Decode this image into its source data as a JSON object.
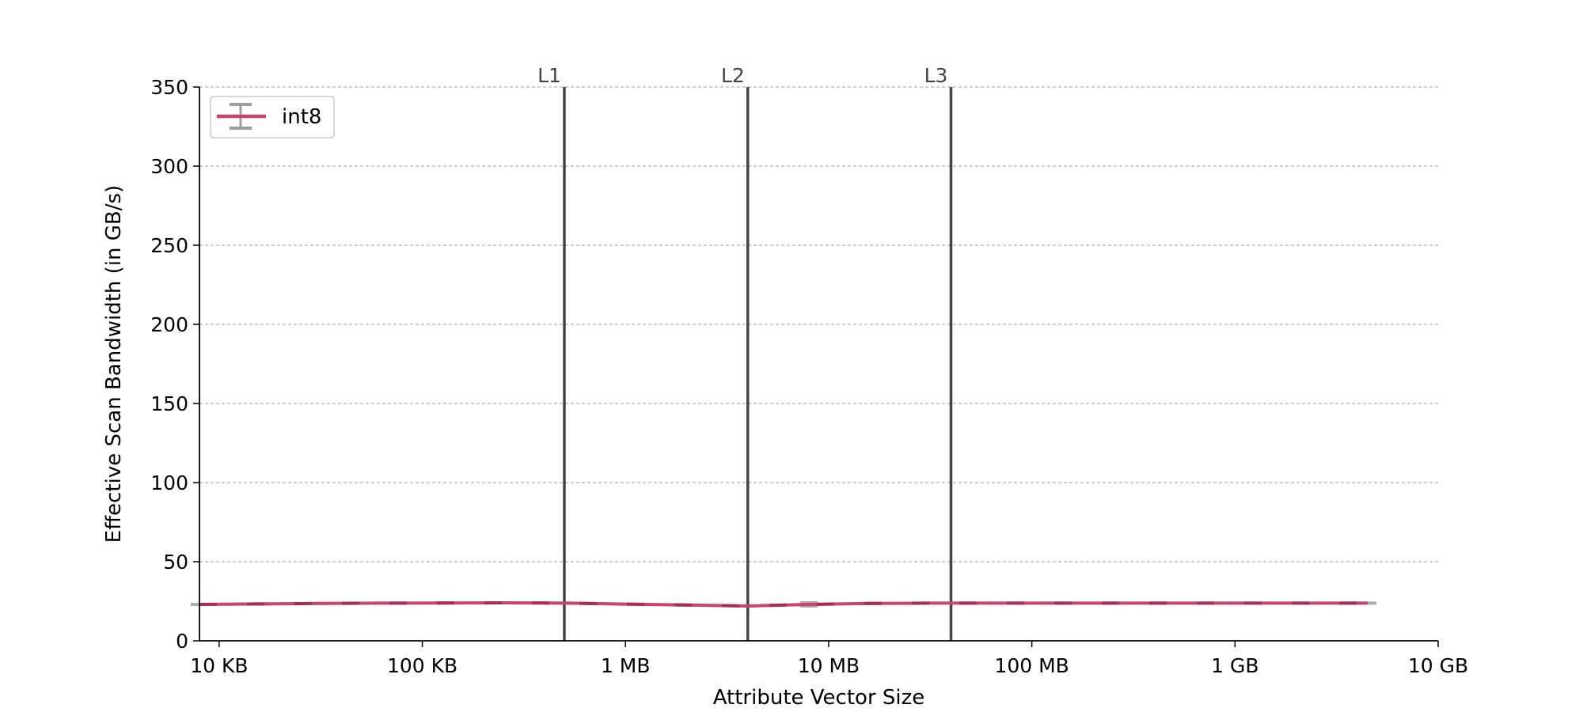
{
  "chart_data": {
    "type": "line",
    "title": "",
    "xlabel": "Attribute Vector Size",
    "ylabel": "Effective Scan Bandwidth (in GB/s)",
    "x_scale": "log",
    "x_unit": "bytes",
    "xlim": [
      8000,
      10000000000
    ],
    "ylim": [
      0,
      350
    ],
    "x_ticks": [
      {
        "value": 10000,
        "label": "10 KB"
      },
      {
        "value": 100000,
        "label": "100 KB"
      },
      {
        "value": 1000000,
        "label": "1 MB"
      },
      {
        "value": 10000000,
        "label": "10 MB"
      },
      {
        "value": 100000000,
        "label": "100 MB"
      },
      {
        "value": 1000000000,
        "label": "1 GB"
      },
      {
        "value": 10000000000,
        "label": "10 GB"
      }
    ],
    "y_ticks": [
      {
        "value": 0,
        "label": "0"
      },
      {
        "value": 50,
        "label": "50"
      },
      {
        "value": 100,
        "label": "100"
      },
      {
        "value": 150,
        "label": "150"
      },
      {
        "value": 200,
        "label": "200"
      },
      {
        "value": 250,
        "label": "250"
      },
      {
        "value": 300,
        "label": "300"
      },
      {
        "value": 350,
        "label": "350"
      }
    ],
    "grid": "horizontal dashed",
    "legend_position": "top-left",
    "cache_lines": [
      {
        "label": "L1",
        "x": 500000
      },
      {
        "label": "L2",
        "x": 4000000
      },
      {
        "label": "L3",
        "x": 40000000
      }
    ],
    "series": [
      {
        "name": "int8",
        "color": "#c9456f",
        "error_color": "#9e9e9e",
        "x": [
          8000,
          16000,
          32000,
          64000,
          128000,
          256000,
          512000,
          1000000,
          2000000,
          4000000,
          8000000,
          16000000,
          32000000,
          64000000,
          128000000,
          256000000,
          1000000000,
          4000000000,
          4500000000
        ],
        "y": [
          23,
          23.3,
          23.6,
          23.8,
          23.9,
          24,
          23.8,
          23.2,
          22.6,
          22.0,
          23.0,
          23.6,
          23.8,
          23.8,
          23.8,
          23.8,
          23.8,
          23.8,
          23.8
        ],
        "error": [
          0.3,
          0.3,
          0.3,
          0.3,
          0.3,
          0.3,
          0.8,
          0.3,
          0.4,
          0.8,
          2.0,
          0.3,
          0.3,
          0.3,
          0.3,
          0.3,
          0.3,
          0.3,
          0.8
        ]
      }
    ]
  }
}
